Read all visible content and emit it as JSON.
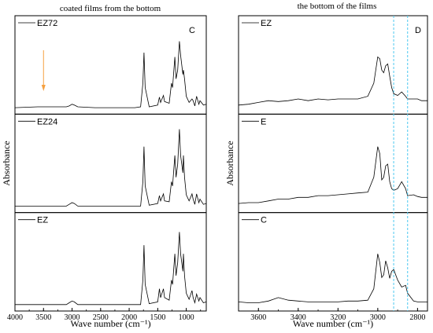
{
  "chart_data": [
    {
      "type": "line",
      "panel": "C",
      "title": "coated films  from the bottom",
      "xlabel": "Wave number (cm⁻¹)",
      "ylabel": "Absorbance",
      "xlim": [
        4000,
        650
      ],
      "x_reversed": true,
      "xticks": [
        4000,
        3500,
        3000,
        2500,
        2000,
        1500,
        1000
      ],
      "ylim": [
        0,
        1
      ],
      "grid": false,
      "legend_placement": "top-left of each subplot",
      "annotations": [
        {
          "type": "arrow",
          "x": 3500,
          "color": "#f5a040"
        }
      ],
      "subplots": [
        {
          "series": [
            {
              "name": "EZ72",
              "x": [
                4000,
                3600,
                3500,
                3100,
                3050,
                3000,
                2960,
                2900,
                2600,
                2400,
                2100,
                1900,
                1800,
                1760,
                1740,
                1720,
                1650,
                1500,
                1470,
                1450,
                1400,
                1380,
                1300,
                1260,
                1240,
                1200,
                1180,
                1150,
                1120,
                1100,
                1060,
                1050,
                1030,
                1000,
                950,
                900,
                880,
                850,
                820,
                780,
                760,
                700,
                650
              ],
              "values": [
                0.02,
                0.03,
                0.03,
                0.03,
                0.04,
                0.06,
                0.05,
                0.03,
                0.02,
                0.02,
                0.02,
                0.02,
                0.03,
                0.3,
                0.65,
                0.25,
                0.03,
                0.05,
                0.14,
                0.08,
                0.16,
                0.09,
                0.07,
                0.3,
                0.25,
                0.6,
                0.35,
                0.45,
                0.78,
                0.62,
                0.4,
                0.45,
                0.35,
                0.15,
                0.08,
                0.12,
                0.1,
                0.04,
                0.15,
                0.06,
                0.1,
                0.05,
                0.06
              ]
            }
          ]
        },
        {
          "series": [
            {
              "name": "EZ24",
              "x": [
                4000,
                3600,
                3500,
                3100,
                3050,
                3000,
                2960,
                2900,
                2600,
                2400,
                2100,
                1900,
                1800,
                1760,
                1740,
                1720,
                1650,
                1500,
                1470,
                1450,
                1400,
                1380,
                1300,
                1260,
                1240,
                1200,
                1180,
                1150,
                1120,
                1100,
                1060,
                1050,
                1030,
                1000,
                950,
                900,
                880,
                850,
                820,
                780,
                760,
                700,
                650
              ],
              "values": [
                0.02,
                0.02,
                0.02,
                0.02,
                0.04,
                0.06,
                0.05,
                0.02,
                0.02,
                0.02,
                0.02,
                0.02,
                0.02,
                0.3,
                0.7,
                0.25,
                0.03,
                0.05,
                0.14,
                0.08,
                0.16,
                0.08,
                0.07,
                0.3,
                0.25,
                0.6,
                0.35,
                0.5,
                0.9,
                0.6,
                0.4,
                0.6,
                0.35,
                0.15,
                0.08,
                0.16,
                0.1,
                0.04,
                0.16,
                0.06,
                0.1,
                0.04,
                0.05
              ]
            }
          ]
        },
        {
          "series": [
            {
              "name": "EZ",
              "x": [
                4000,
                3600,
                3500,
                3100,
                3050,
                3000,
                2960,
                2900,
                2600,
                2400,
                2100,
                1900,
                1800,
                1760,
                1740,
                1720,
                1650,
                1500,
                1470,
                1450,
                1400,
                1380,
                1300,
                1260,
                1240,
                1200,
                1180,
                1150,
                1120,
                1100,
                1060,
                1050,
                1030,
                1000,
                950,
                900,
                880,
                850,
                820,
                780,
                760,
                700,
                650
              ],
              "values": [
                0.02,
                0.02,
                0.02,
                0.02,
                0.04,
                0.06,
                0.05,
                0.02,
                0.02,
                0.02,
                0.02,
                0.02,
                0.02,
                0.3,
                0.7,
                0.25,
                0.03,
                0.05,
                0.2,
                0.1,
                0.2,
                0.1,
                0.07,
                0.3,
                0.25,
                0.6,
                0.35,
                0.5,
                0.85,
                0.6,
                0.4,
                0.6,
                0.35,
                0.15,
                0.08,
                0.18,
                0.1,
                0.04,
                0.14,
                0.06,
                0.1,
                0.04,
                0.05
              ]
            }
          ]
        }
      ]
    },
    {
      "type": "line",
      "panel": "D",
      "title": "the bottom of the films",
      "xlabel": "Wave number (cm⁻¹)",
      "ylabel": "Absorbance",
      "xlim": [
        3700,
        2750
      ],
      "x_reversed": true,
      "xticks": [
        3600,
        3400,
        3200,
        3000,
        2800
      ],
      "ylim": [
        0,
        1
      ],
      "grid": false,
      "legend_placement": "top-left of each subplot",
      "reference_lines": [
        {
          "x": 2920,
          "style": "dashed",
          "color": "#4dc8f0"
        },
        {
          "x": 2850,
          "style": "dashed",
          "color": "#4dc8f0"
        }
      ],
      "subplots": [
        {
          "series": [
            {
              "name": "EZ",
              "x": [
                3700,
                3650,
                3600,
                3550,
                3500,
                3450,
                3400,
                3350,
                3300,
                3250,
                3200,
                3150,
                3100,
                3050,
                3020,
                3000,
                2990,
                2980,
                2970,
                2960,
                2950,
                2940,
                2930,
                2920,
                2900,
                2880,
                2860,
                2850,
                2820,
                2800,
                2780,
                2750
              ],
              "values": [
                0.05,
                0.06,
                0.08,
                0.1,
                0.09,
                0.1,
                0.12,
                0.1,
                0.12,
                0.11,
                0.12,
                0.12,
                0.12,
                0.15,
                0.3,
                0.6,
                0.58,
                0.45,
                0.42,
                0.5,
                0.52,
                0.38,
                0.25,
                0.18,
                0.16,
                0.2,
                0.15,
                0.12,
                0.12,
                0.12,
                0.1,
                0.1
              ]
            }
          ]
        },
        {
          "series": [
            {
              "name": "E",
              "x": [
                3700,
                3650,
                3600,
                3550,
                3500,
                3450,
                3400,
                3350,
                3300,
                3250,
                3200,
                3150,
                3100,
                3050,
                3020,
                3000,
                2990,
                2980,
                2970,
                2960,
                2950,
                2940,
                2930,
                2920,
                2900,
                2880,
                2860,
                2850,
                2820,
                2800,
                2780,
                2750
              ],
              "values": [
                0.05,
                0.06,
                0.06,
                0.08,
                0.1,
                0.1,
                0.12,
                0.12,
                0.14,
                0.14,
                0.15,
                0.16,
                0.17,
                0.18,
                0.35,
                0.7,
                0.62,
                0.32,
                0.35,
                0.48,
                0.5,
                0.3,
                0.22,
                0.2,
                0.22,
                0.3,
                0.22,
                0.14,
                0.15,
                0.13,
                0.12,
                0.12
              ]
            }
          ]
        },
        {
          "series": [
            {
              "name": "C",
              "x": [
                3700,
                3650,
                3600,
                3550,
                3500,
                3450,
                3400,
                3350,
                3300,
                3250,
                3200,
                3150,
                3100,
                3050,
                3020,
                3000,
                2990,
                2980,
                2970,
                2960,
                2950,
                2940,
                2930,
                2920,
                2900,
                2880,
                2860,
                2850,
                2820,
                2800,
                2780,
                2750
              ],
              "values": [
                0.05,
                0.04,
                0.04,
                0.06,
                0.1,
                0.07,
                0.06,
                0.05,
                0.05,
                0.05,
                0.05,
                0.06,
                0.06,
                0.07,
                0.2,
                0.6,
                0.5,
                0.33,
                0.36,
                0.52,
                0.44,
                0.32,
                0.4,
                0.42,
                0.3,
                0.22,
                0.24,
                0.15,
                0.06,
                0.05,
                0.05,
                0.05
              ]
            }
          ]
        }
      ]
    }
  ]
}
